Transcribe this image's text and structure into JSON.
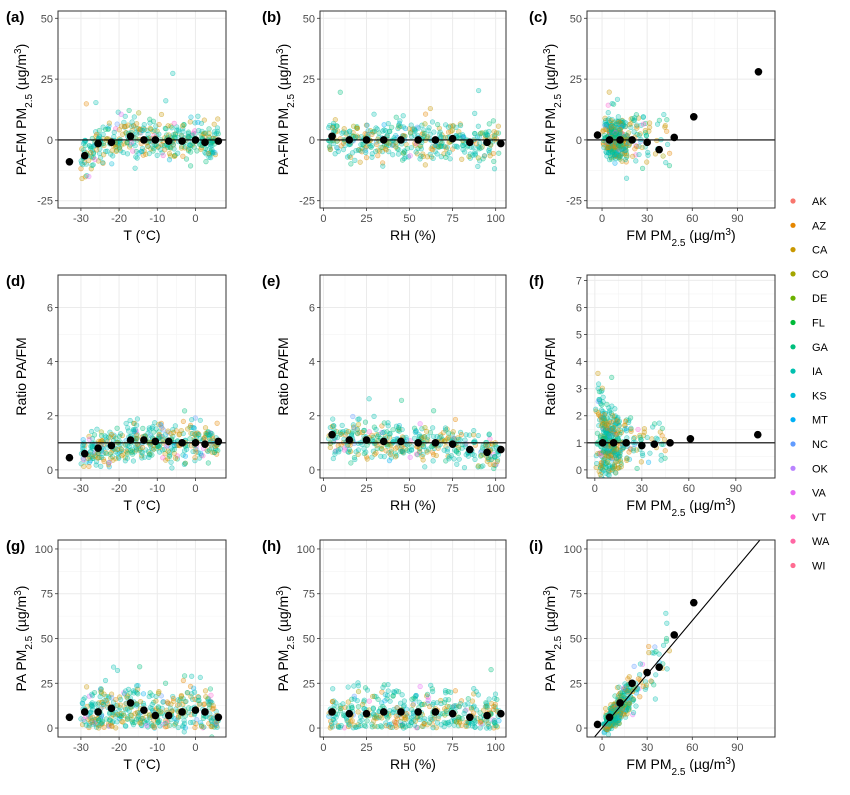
{
  "figure": {
    "legend": {
      "position": "right",
      "entries": [
        {
          "name": "AK",
          "color": "#F8766D"
        },
        {
          "name": "AZ",
          "color": "#E58700"
        },
        {
          "name": "CA",
          "color": "#C99800"
        },
        {
          "name": "CO",
          "color": "#A3A500"
        },
        {
          "name": "DE",
          "color": "#6BB100"
        },
        {
          "name": "FL",
          "color": "#00BA38"
        },
        {
          "name": "GA",
          "color": "#00BF7D"
        },
        {
          "name": "IA",
          "color": "#00C0AF"
        },
        {
          "name": "KS",
          "color": "#00BCD8"
        },
        {
          "name": "MT",
          "color": "#00B0F6"
        },
        {
          "name": "NC",
          "color": "#619CFF"
        },
        {
          "name": "OK",
          "color": "#B983FF"
        },
        {
          "name": "VA",
          "color": "#E76BF3"
        },
        {
          "name": "VT",
          "color": "#FD61D1"
        },
        {
          "name": "WA",
          "color": "#FF67A4"
        },
        {
          "name": "WI",
          "color": "#FF6C91"
        }
      ]
    }
  },
  "chart_data": [
    {
      "id": "a",
      "letter": "(a)",
      "type": "scatter",
      "xlabel": "T (°C)",
      "ylabel_main": "PA-FM PM",
      "ylabel_sub": "2.5",
      "ylabel_unit": " (µg/m",
      "ylabel_sup": "3",
      "ylabel_end": ")",
      "xlim": [
        -36,
        8
      ],
      "ylim": [
        -28,
        53
      ],
      "xticks": [
        -30,
        -20,
        -10,
        0
      ],
      "xtick_labels": [
        "-30",
        "-20",
        "-10",
        "0"
      ],
      "yticks": [
        -25,
        0,
        25,
        50
      ],
      "ytick_labels": [
        "-25",
        "0",
        "25",
        "50"
      ],
      "grid": true,
      "hline": 0,
      "means": {
        "x": [
          -33,
          -29,
          -25.5,
          -22,
          -17,
          -13.5,
          -10.5,
          -7,
          -3.5,
          0,
          2.5,
          6
        ],
        "y": [
          -9,
          -6.5,
          -1.5,
          -1,
          1.5,
          0,
          0,
          -0.5,
          -0.5,
          0,
          -1,
          -0.5
        ]
      }
    },
    {
      "id": "b",
      "letter": "(b)",
      "type": "scatter",
      "xlabel": "RH (%)",
      "ylabel_main": "PA-FM PM",
      "ylabel_sub": "2.5",
      "ylabel_unit": " (µg/m",
      "ylabel_sup": "3",
      "ylabel_end": ")",
      "xlim": [
        -2,
        106
      ],
      "ylim": [
        -28,
        53
      ],
      "xticks": [
        0,
        25,
        50,
        75,
        100
      ],
      "xtick_labels": [
        "0",
        "25",
        "50",
        "75",
        "100"
      ],
      "yticks": [
        -25,
        0,
        25,
        50
      ],
      "ytick_labels": [
        "-25",
        "0",
        "25",
        "50"
      ],
      "grid": true,
      "hline": 0,
      "means": {
        "x": [
          5,
          15,
          25,
          35,
          45,
          55,
          65,
          75,
          85,
          95,
          103
        ],
        "y": [
          1.5,
          0,
          0,
          0,
          0,
          0,
          0,
          0.5,
          -1,
          -1,
          -1.5
        ]
      }
    },
    {
      "id": "c",
      "letter": "(c)",
      "type": "scatter",
      "xlabel_main": "FM PM",
      "xlabel_sub": "2.5",
      "xlabel_unit": " (µg/m",
      "xlabel_sup": "3",
      "xlabel_end": ")",
      "ylabel_main": "PA-FM PM",
      "ylabel_sub": "2.5",
      "ylabel_unit": " (µg/m",
      "ylabel_sup": "3",
      "ylabel_end": ")",
      "xlim": [
        -10,
        115
      ],
      "ylim": [
        -28,
        53
      ],
      "xticks": [
        0,
        30,
        60,
        90
      ],
      "xtick_labels": [
        "0",
        "30",
        "60",
        "90"
      ],
      "yticks": [
        -25,
        0,
        25,
        50
      ],
      "ytick_labels": [
        "-25",
        "0",
        "25",
        "50"
      ],
      "grid": true,
      "hline": 0,
      "means": {
        "x": [
          -3,
          5,
          12,
          20,
          30,
          38,
          48,
          61,
          104
        ],
        "y": [
          2,
          0,
          0,
          0,
          -1,
          -4,
          1,
          9.5,
          28
        ]
      }
    },
    {
      "id": "d",
      "letter": "(d)",
      "type": "scatter",
      "xlabel": "T (°C)",
      "ylabel": "Ratio PA/FM",
      "xlim": [
        -36,
        8
      ],
      "ylim": [
        -0.3,
        7.2
      ],
      "xticks": [
        -30,
        -20,
        -10,
        0
      ],
      "xtick_labels": [
        "-30",
        "-20",
        "-10",
        "0"
      ],
      "yticks": [
        0,
        2,
        4,
        6
      ],
      "ytick_labels": [
        "0",
        "2",
        "4",
        "6"
      ],
      "grid": true,
      "hline": 1,
      "means": {
        "x": [
          -33,
          -29,
          -25.5,
          -22,
          -17,
          -13.5,
          -10.5,
          -7,
          -3.5,
          0,
          2.5,
          6
        ],
        "y": [
          0.45,
          0.6,
          0.8,
          0.9,
          1.1,
          1.1,
          1.05,
          1.05,
          1.0,
          1.0,
          0.95,
          1.05
        ]
      }
    },
    {
      "id": "e",
      "letter": "(e)",
      "type": "scatter",
      "xlabel": "RH (%)",
      "ylabel": "Ratio PA/FM",
      "xlim": [
        -2,
        106
      ],
      "ylim": [
        -0.3,
        7.2
      ],
      "xticks": [
        0,
        25,
        50,
        75,
        100
      ],
      "xtick_labels": [
        "0",
        "25",
        "50",
        "75",
        "100"
      ],
      "yticks": [
        0,
        2,
        4,
        6
      ],
      "ytick_labels": [
        "0",
        "2",
        "4",
        "6"
      ],
      "grid": true,
      "hline": 1,
      "means": {
        "x": [
          5,
          15,
          25,
          35,
          45,
          55,
          65,
          75,
          85,
          95,
          103
        ],
        "y": [
          1.3,
          1.1,
          1.1,
          1.05,
          1.05,
          1.0,
          1.0,
          0.95,
          0.75,
          0.65,
          0.75
        ]
      }
    },
    {
      "id": "f",
      "letter": "(f)",
      "type": "scatter",
      "xlabel_main": "FM PM",
      "xlabel_sub": "2.5",
      "xlabel_unit": " (µg/m",
      "xlabel_sup": "3",
      "xlabel_end": ")",
      "ylabel": "Ratio PA/FM",
      "xlim": [
        -5,
        115
      ],
      "ylim": [
        -0.3,
        7.2
      ],
      "xticks": [
        0,
        30,
        60,
        90
      ],
      "xtick_labels": [
        "0",
        "30",
        "60",
        "90"
      ],
      "yticks": [
        0,
        1,
        2,
        3,
        4,
        5,
        6,
        7
      ],
      "ytick_labels": [
        "0",
        "1",
        "2",
        "3",
        "4",
        "5",
        "6",
        "7"
      ],
      "grid": true,
      "hline": 1,
      "means": {
        "x": [
          5,
          12,
          20,
          30,
          38,
          48,
          61,
          104
        ],
        "y": [
          1.0,
          1.0,
          1.0,
          0.9,
          0.95,
          1.0,
          1.15,
          1.3
        ]
      }
    },
    {
      "id": "g",
      "letter": "(g)",
      "type": "scatter",
      "xlabel": "T (°C)",
      "ylabel_main": "PA PM",
      "ylabel_sub": "2.5",
      "ylabel_unit": " (µg/m",
      "ylabel_sup": "3",
      "ylabel_end": ")",
      "xlim": [
        -36,
        8
      ],
      "ylim": [
        -5,
        105
      ],
      "xticks": [
        -30,
        -20,
        -10,
        0
      ],
      "xtick_labels": [
        "-30",
        "-20",
        "-10",
        "0"
      ],
      "yticks": [
        0,
        25,
        50,
        75,
        100
      ],
      "ytick_labels": [
        "0",
        "25",
        "50",
        "75",
        "100"
      ],
      "grid": true,
      "means": {
        "x": [
          -33,
          -29,
          -25.5,
          -22,
          -17,
          -13.5,
          -10.5,
          -7,
          -3.5,
          0,
          2.5,
          6
        ],
        "y": [
          6,
          9,
          9,
          11,
          14,
          10,
          7,
          7,
          9,
          10,
          9,
          6
        ]
      }
    },
    {
      "id": "h",
      "letter": "(h)",
      "type": "scatter",
      "xlabel": "RH (%)",
      "ylabel_main": "PA PM",
      "ylabel_sub": "2.5",
      "ylabel_unit": " (µg/m",
      "ylabel_sup": "3",
      "ylabel_end": ")",
      "xlim": [
        -2,
        106
      ],
      "ylim": [
        -5,
        105
      ],
      "xticks": [
        0,
        25,
        50,
        75,
        100
      ],
      "xtick_labels": [
        "0",
        "25",
        "50",
        "75",
        "100"
      ],
      "yticks": [
        0,
        25,
        50,
        75,
        100
      ],
      "ytick_labels": [
        "0",
        "25",
        "50",
        "75",
        "100"
      ],
      "grid": true,
      "means": {
        "x": [
          5,
          15,
          25,
          35,
          45,
          55,
          65,
          75,
          85,
          95,
          103
        ],
        "y": [
          9,
          8,
          8,
          9,
          9,
          9,
          9,
          8,
          6,
          7,
          8
        ]
      }
    },
    {
      "id": "i",
      "letter": "(i)",
      "type": "scatter",
      "xlabel_main": "FM PM",
      "xlabel_sub": "2.5",
      "xlabel_unit": " (µg/m",
      "xlabel_sup": "3",
      "xlabel_end": ")",
      "ylabel_main": "PA PM",
      "ylabel_sub": "2.5",
      "ylabel_unit": " (µg/m",
      "ylabel_sup": "3",
      "ylabel_end": ")",
      "xlim": [
        -10,
        115
      ],
      "ylim": [
        -5,
        105
      ],
      "xticks": [
        0,
        30,
        60,
        90
      ],
      "xtick_labels": [
        "0",
        "30",
        "60",
        "90"
      ],
      "yticks": [
        0,
        25,
        50,
        75,
        100
      ],
      "ytick_labels": [
        "0",
        "25",
        "50",
        "75",
        "100"
      ],
      "grid": true,
      "abline": [
        0,
        1
      ],
      "means": {
        "x": [
          -3,
          5,
          12,
          20,
          30,
          38,
          48,
          61
        ],
        "y": [
          2,
          6,
          14,
          25,
          31,
          34,
          52,
          70
        ]
      }
    }
  ]
}
